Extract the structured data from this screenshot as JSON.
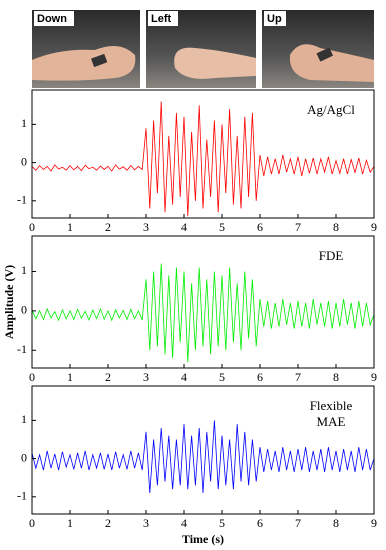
{
  "photos": [
    {
      "label": "Down"
    },
    {
      "label": "Left"
    },
    {
      "label": "Up"
    }
  ],
  "chart_data": [
    {
      "type": "line",
      "x": [
        0,
        0.1,
        0.2,
        0.3,
        0.4,
        0.5,
        0.6,
        0.7,
        0.8,
        0.9,
        1,
        1.1,
        1.2,
        1.3,
        1.4,
        1.5,
        1.6,
        1.7,
        1.8,
        1.9,
        2,
        2.1,
        2.2,
        2.3,
        2.4,
        2.5,
        2.6,
        2.7,
        2.8,
        2.9,
        3,
        3.1,
        3.2,
        3.3,
        3.4,
        3.5,
        3.6,
        3.7,
        3.8,
        3.9,
        4,
        4.1,
        4.2,
        4.3,
        4.4,
        4.5,
        4.6,
        4.7,
        4.8,
        4.9,
        5,
        5.1,
        5.2,
        5.3,
        5.4,
        5.5,
        5.6,
        5.7,
        5.8,
        5.9,
        6,
        6.1,
        6.2,
        6.3,
        6.4,
        6.5,
        6.6,
        6.7,
        6.8,
        6.9,
        7,
        7.1,
        7.2,
        7.3,
        7.4,
        7.5,
        7.6,
        7.7,
        7.8,
        7.9,
        8,
        8.1,
        8.2,
        8.3,
        8.4,
        8.5,
        8.6,
        8.7,
        8.8,
        8.9,
        9
      ],
      "series": [
        {
          "name": "Ag/AgCl",
          "color": "#ff0000",
          "values": [
            -0.1,
            -0.2,
            -0.08,
            -0.18,
            -0.1,
            -0.22,
            -0.06,
            -0.17,
            -0.12,
            -0.2,
            -0.08,
            -0.19,
            -0.1,
            -0.21,
            -0.07,
            -0.16,
            -0.12,
            -0.2,
            -0.09,
            -0.18,
            -0.1,
            -0.22,
            -0.06,
            -0.17,
            -0.11,
            -0.2,
            -0.08,
            -0.19,
            -0.1,
            -0.18,
            0.9,
            -1.2,
            1.1,
            -0.8,
            1.6,
            -1.3,
            0.7,
            -1.1,
            1.3,
            -0.9,
            1.2,
            -1.4,
            0.8,
            -1.0,
            1.5,
            -1.2,
            0.6,
            -0.9,
            1.1,
            -1.3,
            1.0,
            -0.8,
            1.4,
            -1.1,
            0.7,
            -1.2,
            1.2,
            -0.9,
            1.3,
            -1.0,
            0.2,
            -0.35,
            0.15,
            -0.3,
            0.1,
            -0.3,
            0.2,
            -0.25,
            0.1,
            -0.3,
            0.15,
            -0.35,
            0.1,
            -0.28,
            0.12,
            -0.3,
            0.1,
            -0.25,
            0.15,
            -0.3,
            0.05,
            -0.28,
            0.1,
            -0.3,
            0.08,
            -0.26,
            0.12,
            -0.3,
            0.06,
            -0.25,
            -0.1
          ]
        }
      ],
      "xlim": [
        0,
        9
      ],
      "xticks": [
        0,
        1,
        2,
        3,
        4,
        5,
        6,
        7,
        8,
        9
      ],
      "ylim": [
        -1.45,
        1.9
      ],
      "yticks": [
        -1,
        0,
        1
      ]
    },
    {
      "type": "line",
      "x": [
        0,
        0.1,
        0.2,
        0.3,
        0.4,
        0.5,
        0.6,
        0.7,
        0.8,
        0.9,
        1,
        1.1,
        1.2,
        1.3,
        1.4,
        1.5,
        1.6,
        1.7,
        1.8,
        1.9,
        2,
        2.1,
        2.2,
        2.3,
        2.4,
        2.5,
        2.6,
        2.7,
        2.8,
        2.9,
        3,
        3.1,
        3.2,
        3.3,
        3.4,
        3.5,
        3.6,
        3.7,
        3.8,
        3.9,
        4,
        4.1,
        4.2,
        4.3,
        4.4,
        4.5,
        4.6,
        4.7,
        4.8,
        4.9,
        5,
        5.1,
        5.2,
        5.3,
        5.4,
        5.5,
        5.6,
        5.7,
        5.8,
        5.9,
        6,
        6.1,
        6.2,
        6.3,
        6.4,
        6.5,
        6.6,
        6.7,
        6.8,
        6.9,
        7,
        7.1,
        7.2,
        7.3,
        7.4,
        7.5,
        7.6,
        7.7,
        7.8,
        7.9,
        8,
        8.1,
        8.2,
        8.3,
        8.4,
        8.5,
        8.6,
        8.7,
        8.8,
        8.9,
        9
      ],
      "y_label": "Amplitude (V)",
      "series": [
        {
          "name": "FDE",
          "color": "#00ee00",
          "values": [
            0.02,
            -0.2,
            0.0,
            -0.22,
            0.05,
            -0.18,
            -0.02,
            -0.24,
            0.03,
            -0.2,
            0.0,
            -0.22,
            0.04,
            -0.19,
            -0.01,
            -0.23,
            0.02,
            -0.2,
            0.05,
            -0.21,
            0.0,
            -0.24,
            0.03,
            -0.18,
            0.01,
            -0.22,
            0.04,
            -0.2,
            0.0,
            -0.23,
            0.8,
            -1.0,
            1.0,
            -0.9,
            1.2,
            -1.1,
            0.9,
            -1.2,
            1.1,
            -0.8,
            1.0,
            -1.3,
            0.7,
            -1.0,
            1.1,
            -0.9,
            0.8,
            -1.1,
            1.0,
            -0.9,
            0.9,
            -1.0,
            1.1,
            -0.8,
            0.7,
            -1.0,
            1.0,
            -0.7,
            0.8,
            -0.9,
            0.3,
            -0.4,
            0.25,
            -0.45,
            0.2,
            -0.4,
            0.3,
            -0.35,
            0.2,
            -0.45,
            0.25,
            -0.4,
            0.2,
            -0.45,
            0.3,
            -0.35,
            0.2,
            -0.4,
            0.25,
            -0.45,
            0.2,
            -0.4,
            0.3,
            -0.35,
            0.2,
            -0.45,
            0.25,
            -0.4,
            0.2,
            -0.35,
            -0.1
          ]
        }
      ],
      "xlim": [
        0,
        9
      ],
      "xticks": [
        0,
        1,
        2,
        3,
        4,
        5,
        6,
        7,
        8,
        9
      ],
      "ylim": [
        -1.45,
        1.9
      ],
      "yticks": [
        -1,
        0,
        1
      ]
    },
    {
      "type": "line",
      "x": [
        0,
        0.1,
        0.2,
        0.3,
        0.4,
        0.5,
        0.6,
        0.7,
        0.8,
        0.9,
        1,
        1.1,
        1.2,
        1.3,
        1.4,
        1.5,
        1.6,
        1.7,
        1.8,
        1.9,
        2,
        2.1,
        2.2,
        2.3,
        2.4,
        2.5,
        2.6,
        2.7,
        2.8,
        2.9,
        3,
        3.1,
        3.2,
        3.3,
        3.4,
        3.5,
        3.6,
        3.7,
        3.8,
        3.9,
        4,
        4.1,
        4.2,
        4.3,
        4.4,
        4.5,
        4.6,
        4.7,
        4.8,
        4.9,
        5,
        5.1,
        5.2,
        5.3,
        5.4,
        5.5,
        5.6,
        5.7,
        5.8,
        5.9,
        6,
        6.1,
        6.2,
        6.3,
        6.4,
        6.5,
        6.6,
        6.7,
        6.8,
        6.9,
        7,
        7.1,
        7.2,
        7.3,
        7.4,
        7.5,
        7.6,
        7.7,
        7.8,
        7.9,
        8,
        8.1,
        8.2,
        8.3,
        8.4,
        8.5,
        8.6,
        8.7,
        8.8,
        8.9,
        9
      ],
      "x_label": "Time (s)",
      "series": [
        {
          "name": "Flexible MAE",
          "color": "#0000ff",
          "values": [
            0.15,
            -0.25,
            0.1,
            -0.3,
            0.2,
            -0.25,
            0.12,
            -0.3,
            0.18,
            -0.22,
            0.1,
            -0.28,
            0.15,
            -0.25,
            0.2,
            -0.3,
            0.1,
            -0.25,
            0.15,
            -0.28,
            0.12,
            -0.3,
            0.18,
            -0.25,
            0.1,
            -0.28,
            0.2,
            -0.25,
            0.15,
            -0.3,
            0.7,
            -0.9,
            0.5,
            -0.7,
            0.8,
            -0.6,
            0.6,
            -0.8,
            0.5,
            -0.7,
            0.9,
            -0.8,
            0.6,
            -0.7,
            0.8,
            -0.9,
            0.7,
            -0.6,
            1.0,
            -0.8,
            0.6,
            -0.7,
            0.5,
            -0.8,
            0.9,
            -0.6,
            0.7,
            -0.7,
            0.5,
            -0.6,
            0.3,
            -0.35,
            0.25,
            -0.3,
            0.2,
            -0.35,
            0.3,
            -0.3,
            0.2,
            -0.35,
            0.25,
            -0.3,
            0.3,
            -0.35,
            0.2,
            -0.3,
            0.25,
            -0.35,
            0.3,
            -0.3,
            0.2,
            -0.35,
            0.25,
            -0.3,
            0.2,
            -0.35,
            0.3,
            -0.3,
            0.25,
            -0.3,
            0.0
          ]
        }
      ],
      "xlim": [
        0,
        9
      ],
      "xticks": [
        0,
        1,
        2,
        3,
        4,
        5,
        6,
        7,
        8,
        9
      ],
      "ylim": [
        -1.45,
        1.9
      ],
      "yticks": [
        -1,
        0,
        1
      ]
    }
  ]
}
